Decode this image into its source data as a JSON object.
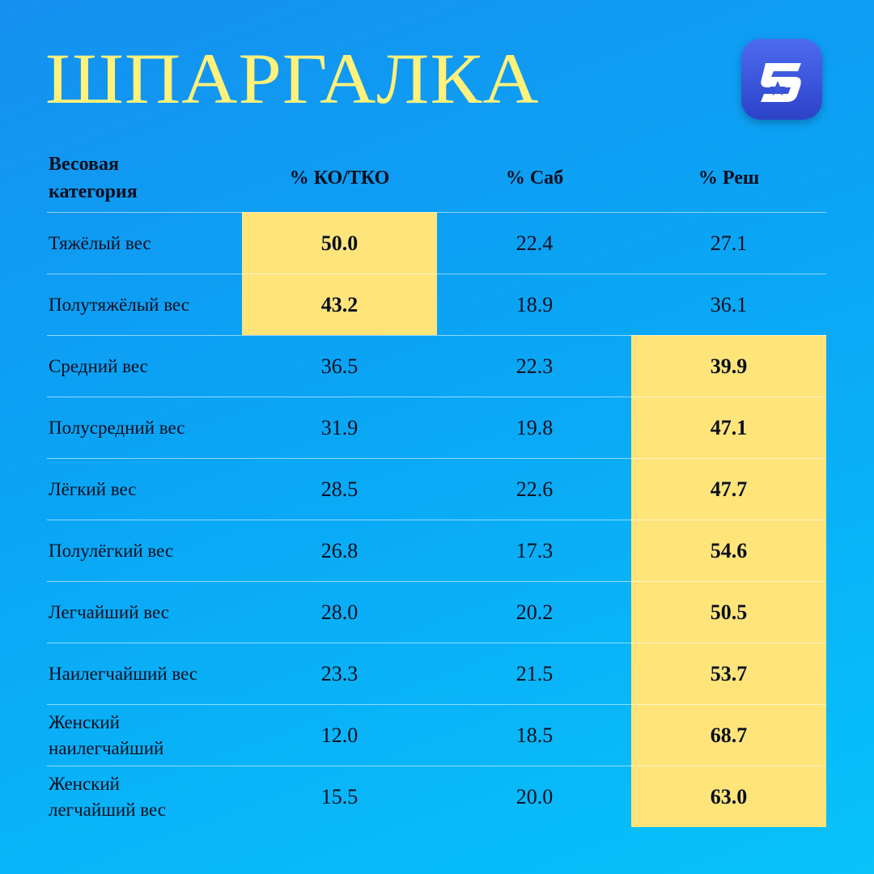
{
  "title": "ШПАРГАЛКА",
  "logo": {
    "icon": "s-star-logo-icon",
    "accent": "#3a56dc"
  },
  "colors": {
    "highlight": "#ffe47a",
    "title": "#fff17a",
    "background": "#0aa6f5"
  },
  "table": {
    "headers": [
      "Весовая категория",
      "% КО/ТКО",
      "% Саб",
      "% Реш"
    ],
    "rows": [
      {
        "name": "Тяжёлый вес",
        "ko": "50.0",
        "sub": "22.4",
        "dec": "27.1",
        "highlight": "ko"
      },
      {
        "name": "Полутяжёлый вес",
        "ko": "43.2",
        "sub": "18.9",
        "dec": "36.1",
        "highlight": "ko"
      },
      {
        "name": "Средний вес",
        "ko": "36.5",
        "sub": "22.3",
        "dec": "39.9",
        "highlight": "dec"
      },
      {
        "name": "Полусредний вес",
        "ko": "31.9",
        "sub": "19.8",
        "dec": "47.1",
        "highlight": "dec"
      },
      {
        "name": "Лёгкий вес",
        "ko": "28.5",
        "sub": "22.6",
        "dec": "47.7",
        "highlight": "dec"
      },
      {
        "name": "Полулёгкий вес",
        "ko": "26.8",
        "sub": "17.3",
        "dec": "54.6",
        "highlight": "dec"
      },
      {
        "name": "Легчайший вес",
        "ko": "28.0",
        "sub": "20.2",
        "dec": "50.5",
        "highlight": "dec"
      },
      {
        "name": "Наилегчайший вес",
        "ko": "23.3",
        "sub": "21.5",
        "dec": "53.7",
        "highlight": "dec"
      },
      {
        "name": "Женский наилегчайший",
        "ko": "12.0",
        "sub": "18.5",
        "dec": "68.7",
        "highlight": "dec"
      },
      {
        "name": "Женский легчайший вес",
        "ko": "15.5",
        "sub": "20.0",
        "dec": "63.0",
        "highlight": "dec"
      }
    ]
  }
}
